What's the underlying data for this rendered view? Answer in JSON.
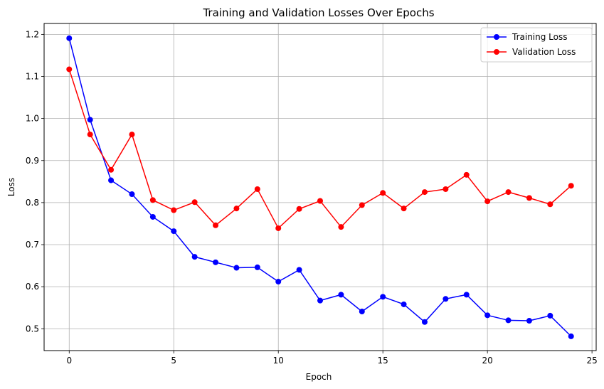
{
  "chart_data": {
    "type": "line",
    "title": "Training and Validation Losses Over Epochs",
    "xlabel": "Epoch",
    "ylabel": "Loss",
    "xlim": [
      -1.2,
      25.2
    ],
    "ylim": [
      0.448,
      1.226
    ],
    "xticks": [
      0,
      5,
      10,
      15,
      20,
      25
    ],
    "yticks": [
      0.5,
      0.6,
      0.7,
      0.8,
      0.9,
      1.0,
      1.1,
      1.2
    ],
    "grid": true,
    "legend_position": "upper right",
    "x": [
      0,
      1,
      2,
      3,
      4,
      5,
      6,
      7,
      8,
      9,
      10,
      11,
      12,
      13,
      14,
      15,
      16,
      17,
      18,
      19,
      20,
      21,
      22,
      23,
      24
    ],
    "series": [
      {
        "name": "Training Loss",
        "color": "#0000ff",
        "values": [
          1.191,
          0.997,
          0.853,
          0.82,
          0.766,
          0.732,
          0.671,
          0.658,
          0.645,
          0.646,
          0.612,
          0.64,
          0.567,
          0.581,
          0.541,
          0.576,
          0.558,
          0.516,
          0.571,
          0.581,
          0.532,
          0.52,
          0.519,
          0.531,
          0.482
        ]
      },
      {
        "name": "Validation Loss",
        "color": "#ff0000",
        "values": [
          1.117,
          0.962,
          0.878,
          0.962,
          0.806,
          0.782,
          0.801,
          0.746,
          0.786,
          0.832,
          0.739,
          0.785,
          0.804,
          0.742,
          0.794,
          0.823,
          0.786,
          0.825,
          0.832,
          0.866,
          0.803,
          0.825,
          0.811,
          0.796,
          0.84
        ]
      }
    ]
  }
}
